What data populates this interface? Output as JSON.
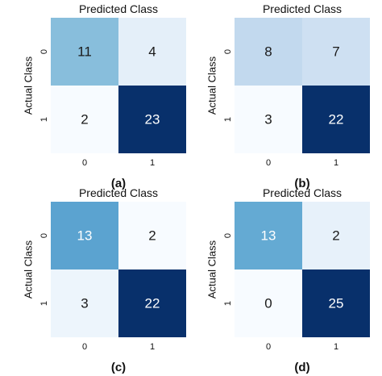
{
  "chart_data": [
    {
      "type": "heatmap",
      "title": "Predicted Class",
      "ylabel": "Actual Class",
      "x_ticks": [
        "0",
        "1"
      ],
      "y_ticks": [
        "0",
        "1"
      ],
      "matrix": [
        [
          11,
          4
        ],
        [
          2,
          23
        ]
      ],
      "caption": "(a)"
    },
    {
      "type": "heatmap",
      "title": "Predicted Class",
      "ylabel": "Actual Class",
      "x_ticks": [
        "0",
        "1"
      ],
      "y_ticks": [
        "0",
        "1"
      ],
      "matrix": [
        [
          8,
          7
        ],
        [
          3,
          22
        ]
      ],
      "caption": "(b)"
    },
    {
      "type": "heatmap",
      "title": "Predicted Class",
      "ylabel": "Actual Class",
      "x_ticks": [
        "0",
        "1"
      ],
      "y_ticks": [
        "0",
        "1"
      ],
      "matrix": [
        [
          13,
          2
        ],
        [
          3,
          22
        ]
      ],
      "caption": "(c)"
    },
    {
      "type": "heatmap",
      "title": "Predicted Class",
      "ylabel": "Actual Class",
      "x_ticks": [
        "0",
        "1"
      ],
      "y_ticks": [
        "0",
        "1"
      ],
      "matrix": [
        [
          13,
          2
        ],
        [
          0,
          25
        ]
      ],
      "caption": "(d)"
    }
  ],
  "colormap": {
    "name": "Blues",
    "stops": [
      "#f7fbff",
      "#deebf7",
      "#c6dbef",
      "#9ecae1",
      "#6baed6",
      "#4292c6",
      "#2171b5",
      "#08519c",
      "#08306b"
    ]
  }
}
